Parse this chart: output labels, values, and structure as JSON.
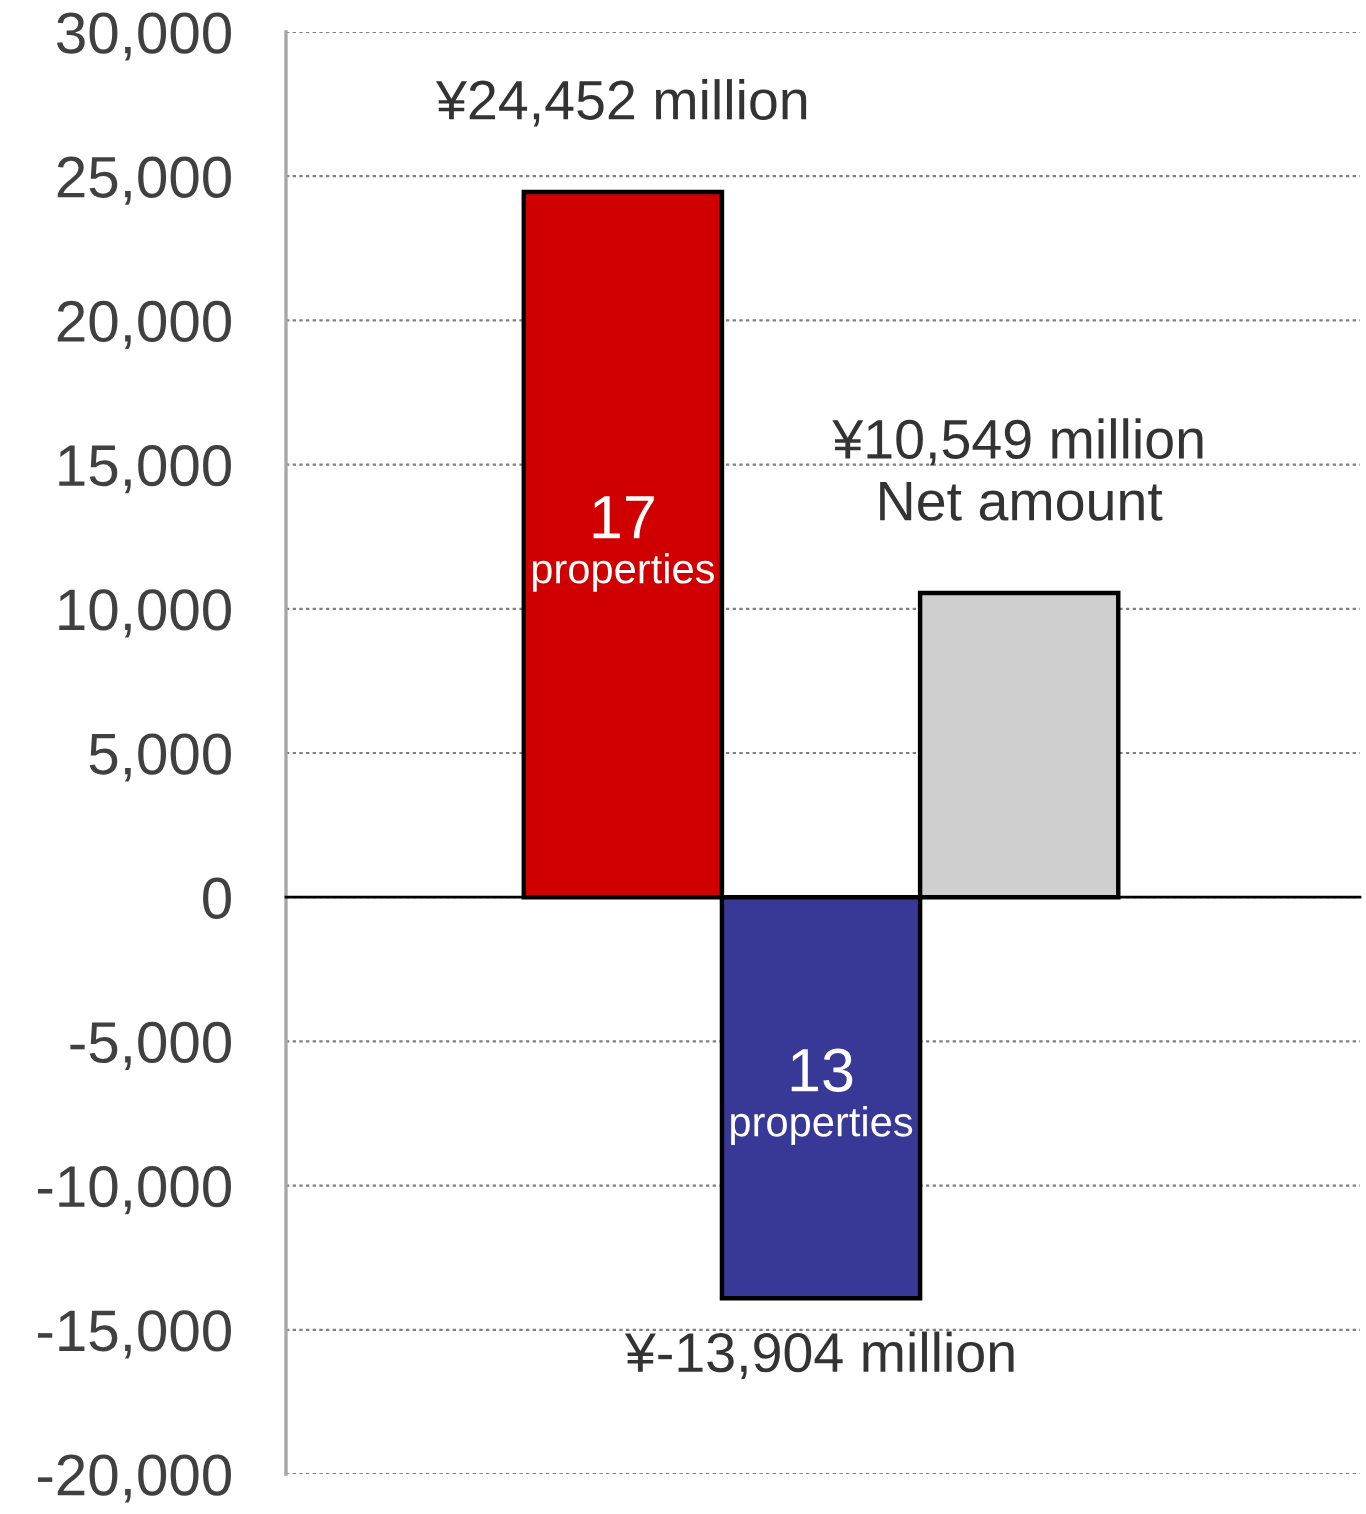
{
  "chart_data": {
    "type": "bar",
    "categories": [
      null,
      null,
      null
    ],
    "values": [
      24452,
      -13904,
      10549
    ],
    "colors": [
      "#d00000",
      "#383896",
      "#cfcfcf"
    ],
    "ylim": [
      -20000,
      30000
    ],
    "yticks": [
      {
        "value": -20000,
        "label": "-20,000"
      },
      {
        "value": -15000,
        "label": "-15,000"
      },
      {
        "value": -10000,
        "label": "-10,000"
      },
      {
        "value": -5000,
        "label": "-5,000"
      },
      0,
      {
        "value": 5000,
        "label": "5,000"
      },
      {
        "value": 10000,
        "label": "10,000"
      },
      {
        "value": 15000,
        "label": "15,000"
      },
      {
        "value": 20000,
        "label": "20,000"
      },
      {
        "value": 25000,
        "label": "25,000"
      },
      {
        "value": 30000,
        "label": "30,000"
      }
    ],
    "grid": "y",
    "tick_labels": "y",
    "value_labels": [
      "¥24,452 million",
      "¥-13,904 million",
      "¥10,549 million\nNet amount"
    ],
    "annotations": [
      "17\nproperties",
      "13\nproperties"
    ]
  }
}
